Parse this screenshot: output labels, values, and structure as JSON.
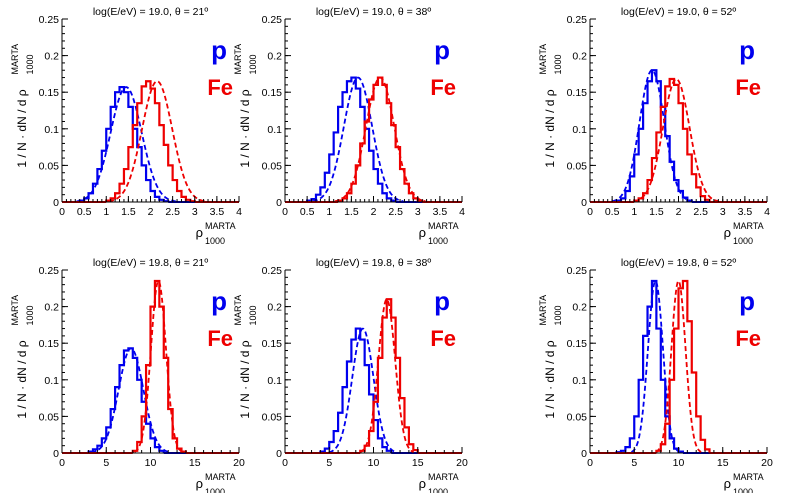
{
  "y_axis_label": "1 / N · dN / d ρ",
  "y_axis_label_super": "MARTA",
  "y_axis_label_sub": "1000",
  "x_axis_label": "ρ",
  "x_axis_label_super": "MARTA",
  "x_axis_label_sub": "1000",
  "legend": [
    {
      "name": "p",
      "color": "#0000ee"
    },
    {
      "name": "Fe",
      "color": "#ee0000"
    }
  ],
  "chart_data": [
    {
      "type": "histogram",
      "title": "log(E/eV) = 19.0, θ = 21º",
      "xlim": [
        0,
        4
      ],
      "ylim": [
        0,
        0.25
      ],
      "xticks": [
        "0",
        "0.5",
        "1",
        "1.5",
        "2",
        "2.5",
        "3",
        "3.5",
        "4"
      ],
      "yticks": [
        "0",
        "0.05",
        "0.1",
        "0.15",
        "0.2",
        "0.25"
      ],
      "bin_width": 0.1,
      "series": [
        {
          "name": "p",
          "bins": {
            "start": 0.4,
            "values": [
              0.002,
              0.005,
              0.012,
              0.025,
              0.045,
              0.07,
              0.1,
              0.13,
              0.15,
              0.157,
              0.15,
              0.13,
              0.1,
              0.075,
              0.05,
              0.03,
              0.015,
              0.007,
              0.003,
              0.001
            ]
          },
          "fit": {
            "mean": 1.45,
            "sigma": 0.35
          }
        },
        {
          "name": "Fe",
          "bins": {
            "start": 1.0,
            "values": [
              0.002,
              0.005,
              0.012,
              0.025,
              0.045,
              0.075,
              0.105,
              0.135,
              0.158,
              0.165,
              0.155,
              0.135,
              0.105,
              0.078,
              0.05,
              0.03,
              0.015,
              0.007,
              0.003,
              0.001
            ]
          },
          "fit": {
            "mean": 2.15,
            "sigma": 0.34
          }
        }
      ]
    },
    {
      "type": "histogram",
      "title": "log(E/eV) = 19.0, θ = 38º",
      "xlim": [
        0,
        4
      ],
      "ylim": [
        0,
        0.25
      ],
      "xticks": [
        "0",
        "0.5",
        "1",
        "1.5",
        "2",
        "2.5",
        "3",
        "3.5",
        "4"
      ],
      "yticks": [
        "0",
        "0.05",
        "0.1",
        "0.15",
        "0.2",
        "0.25"
      ],
      "bin_width": 0.1,
      "series": [
        {
          "name": "p",
          "bins": {
            "start": 0.5,
            "values": [
              0.002,
              0.004,
              0.01,
              0.02,
              0.04,
              0.065,
              0.095,
              0.13,
              0.15,
              0.165,
              0.17,
              0.155,
              0.13,
              0.1,
              0.07,
              0.045,
              0.025,
              0.012,
              0.005,
              0.002
            ]
          },
          "fit": {
            "mean": 1.65,
            "sigma": 0.32
          }
        },
        {
          "name": "Fe",
          "bins": {
            "start": 1.2,
            "values": [
              0.002,
              0.005,
              0.012,
              0.025,
              0.05,
              0.08,
              0.11,
              0.14,
              0.16,
              0.17,
              0.16,
              0.135,
              0.105,
              0.075,
              0.045,
              0.025,
              0.012,
              0.005,
              0.002
            ]
          },
          "fit": {
            "mean": 2.15,
            "sigma": 0.32
          }
        }
      ]
    },
    {
      "type": "histogram",
      "title": "log(E/eV) = 19.0, θ = 52º",
      "xlim": [
        0,
        4
      ],
      "ylim": [
        0,
        0.25
      ],
      "xticks": [
        "0",
        "0.5",
        "1",
        "1.5",
        "2",
        "2.5",
        "3",
        "3.5",
        "4"
      ],
      "yticks": [
        "0",
        "0.05",
        "0.1",
        "0.15",
        "0.2",
        "0.25"
      ],
      "bin_width": 0.1,
      "series": [
        {
          "name": "p",
          "bins": {
            "start": 0.6,
            "values": [
              0.002,
              0.005,
              0.015,
              0.035,
              0.065,
              0.1,
              0.135,
              0.165,
              0.18,
              0.165,
              0.13,
              0.09,
              0.055,
              0.03,
              0.015,
              0.006,
              0.002
            ]
          },
          "fit": {
            "mean": 1.4,
            "sigma": 0.28
          }
        },
        {
          "name": "Fe",
          "bins": {
            "start": 1.0,
            "values": [
              0.002,
              0.005,
              0.012,
              0.03,
              0.06,
              0.095,
              0.13,
              0.158,
              0.168,
              0.16,
              0.135,
              0.1,
              0.065,
              0.038,
              0.02,
              0.008,
              0.003
            ]
          },
          "fit": {
            "mean": 1.95,
            "sigma": 0.3
          }
        }
      ]
    },
    {
      "type": "histogram",
      "title": "log(E/eV) = 19.8, θ = 21º",
      "xlim": [
        0,
        20
      ],
      "ylim": [
        0,
        0.25
      ],
      "xticks": [
        "0",
        "5",
        "10",
        "15",
        "20"
      ],
      "yticks": [
        "0",
        "0.05",
        "0.1",
        "0.15",
        "0.2",
        "0.25"
      ],
      "bin_width": 0.5,
      "series": [
        {
          "name": "p",
          "bins": {
            "start": 3.0,
            "values": [
              0.002,
              0.005,
              0.01,
              0.02,
              0.035,
              0.06,
              0.09,
              0.12,
              0.14,
              0.143,
              0.13,
              0.1,
              0.07,
              0.04,
              0.02,
              0.008,
              0.003
            ]
          },
          "fit": {
            "mean": 7.8,
            "sigma": 1.4
          }
        },
        {
          "name": "Fe",
          "bins": {
            "start": 8.0,
            "values": [
              0.003,
              0.015,
              0.05,
              0.12,
              0.2,
              0.235,
              0.2,
              0.13,
              0.06,
              0.02,
              0.006,
              0.002
            ]
          },
          "fit": {
            "mean": 10.9,
            "sigma": 0.85
          }
        }
      ]
    },
    {
      "type": "histogram",
      "title": "log(E/eV) = 19.8, θ = 38º",
      "xlim": [
        0,
        20
      ],
      "ylim": [
        0,
        0.25
      ],
      "xticks": [
        "0",
        "5",
        "10",
        "15",
        "20"
      ],
      "yticks": [
        "0",
        "0.05",
        "0.1",
        "0.15",
        "0.2",
        "0.25"
      ],
      "bin_width": 0.5,
      "series": [
        {
          "name": "p",
          "bins": {
            "start": 4.0,
            "values": [
              0.002,
              0.006,
              0.015,
              0.03,
              0.055,
              0.09,
              0.125,
              0.155,
              0.17,
              0.155,
              0.12,
              0.08,
              0.045,
              0.02,
              0.008,
              0.003
            ]
          },
          "fit": {
            "mean": 8.8,
            "sigma": 1.2
          }
        },
        {
          "name": "Fe",
          "bins": {
            "start": 8.5,
            "values": [
              0.003,
              0.01,
              0.03,
              0.07,
              0.13,
              0.185,
              0.21,
              0.185,
              0.13,
              0.075,
              0.035,
              0.012,
              0.004
            ]
          },
          "fit": {
            "mean": 11.5,
            "sigma": 0.95
          }
        }
      ]
    },
    {
      "type": "histogram",
      "title": "log(E/eV) = 19.8, θ = 52º",
      "xlim": [
        0,
        20
      ],
      "ylim": [
        0,
        0.25
      ],
      "xticks": [
        "0",
        "5",
        "10",
        "15",
        "20"
      ],
      "yticks": [
        "0",
        "0.05",
        "0.1",
        "0.15",
        "0.2",
        "0.25"
      ],
      "bin_width": 0.5,
      "series": [
        {
          "name": "p",
          "bins": {
            "start": 3.0,
            "values": [
              0.001,
              0.003,
              0.008,
              0.02,
              0.05,
              0.1,
              0.16,
              0.2,
              0.235,
              0.17,
              0.1,
              0.05,
              0.02,
              0.006,
              0.002
            ]
          },
          "fit": {
            "mean": 7.4,
            "sigma": 0.85
          }
        },
        {
          "name": "Fe",
          "bins": {
            "start": 7.5,
            "values": [
              0.003,
              0.012,
              0.04,
              0.1,
              0.17,
              0.225,
              0.235,
              0.18,
              0.11,
              0.05,
              0.018,
              0.005
            ]
          },
          "fit": {
            "mean": 10.0,
            "sigma": 0.8
          }
        }
      ]
    }
  ]
}
